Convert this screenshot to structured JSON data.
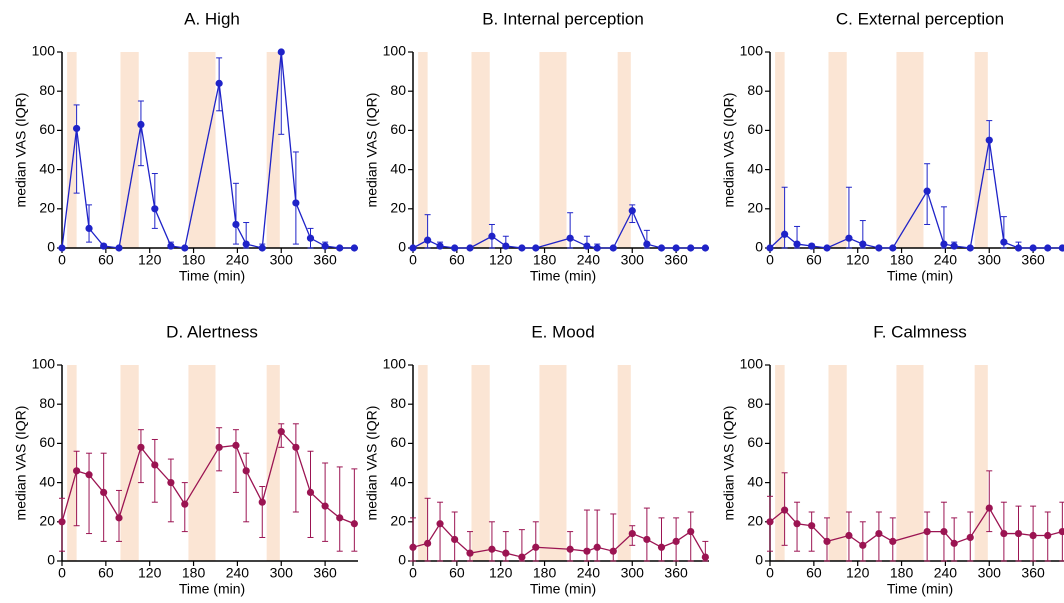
{
  "chart_data": [
    {
      "type": "line",
      "title": "A.  High",
      "xlabel": "Time (min)",
      "ylabel": "median VAS (IQR)",
      "color": "#1f23c8",
      "x": [
        0,
        20,
        37,
        57,
        78,
        108,
        127,
        149,
        168,
        215,
        238,
        252,
        274,
        300,
        320,
        340,
        360,
        380,
        400
      ],
      "values": [
        0,
        61,
        10,
        1,
        0,
        63,
        20,
        1,
        0,
        84,
        12,
        2,
        0,
        100,
        23,
        5,
        1,
        0,
        0
      ],
      "iqr_low": [
        0,
        28,
        3,
        0,
        0,
        42,
        10,
        0,
        0,
        70,
        2,
        0,
        0,
        58,
        2,
        0,
        0,
        0,
        0
      ],
      "iqr_high": [
        0,
        73,
        22,
        2,
        0,
        75,
        38,
        3,
        0,
        97,
        33,
        13,
        2,
        100,
        49,
        10,
        3,
        0,
        0
      ],
      "shaded": [
        [
          7,
          20
        ],
        [
          80,
          105
        ],
        [
          173,
          210
        ],
        [
          280,
          298
        ]
      ],
      "xlim": [
        0,
        405
      ],
      "ylim": [
        0,
        100
      ],
      "xticks": [
        0,
        60,
        120,
        180,
        240,
        300,
        360
      ],
      "yticks": [
        0,
        20,
        40,
        60,
        80,
        100
      ]
    },
    {
      "type": "line",
      "title": "B. Internal perception",
      "xlabel": "Time (min)",
      "ylabel": "median VAS (IQR)",
      "color": "#1f23c8",
      "x": [
        0,
        20,
        37,
        57,
        78,
        108,
        127,
        149,
        168,
        215,
        238,
        252,
        274,
        300,
        320,
        340,
        360,
        380,
        400
      ],
      "values": [
        0,
        4,
        1,
        0,
        0,
        6,
        1,
        0,
        0,
        5,
        1,
        0,
        0,
        19,
        2,
        0,
        0,
        0,
        0
      ],
      "iqr_low": [
        0,
        0,
        0,
        0,
        0,
        0,
        0,
        0,
        0,
        0,
        0,
        0,
        0,
        13,
        0,
        0,
        0,
        0,
        0
      ],
      "iqr_high": [
        0,
        17,
        3,
        0,
        0,
        12,
        6,
        0,
        0,
        18,
        6,
        2,
        0,
        22,
        9,
        0,
        0,
        0,
        0
      ],
      "shaded": [
        [
          7,
          20
        ],
        [
          80,
          105
        ],
        [
          173,
          210
        ],
        [
          280,
          298
        ]
      ],
      "xlim": [
        0,
        405
      ],
      "ylim": [
        0,
        100
      ],
      "xticks": [
        0,
        60,
        120,
        180,
        240,
        300,
        360
      ],
      "yticks": [
        0,
        20,
        40,
        60,
        80,
        100
      ]
    },
    {
      "type": "line",
      "title": "C. External perception",
      "xlabel": "Time (min)",
      "ylabel": "median VAS (IQR)",
      "color": "#1f23c8",
      "x": [
        0,
        20,
        37,
        57,
        78,
        108,
        127,
        149,
        168,
        215,
        238,
        252,
        274,
        300,
        320,
        340,
        360,
        380,
        400
      ],
      "values": [
        0,
        7,
        2,
        1,
        0,
        5,
        2,
        0,
        0,
        29,
        2,
        1,
        0,
        55,
        3,
        0,
        0,
        0,
        0
      ],
      "iqr_low": [
        0,
        0,
        0,
        0,
        0,
        0,
        0,
        0,
        0,
        12,
        0,
        0,
        0,
        40,
        0,
        0,
        0,
        0,
        0
      ],
      "iqr_high": [
        0,
        31,
        11,
        2,
        0,
        31,
        14,
        1,
        0,
        43,
        21,
        3,
        0,
        65,
        16,
        3,
        0,
        0,
        0
      ],
      "shaded": [
        [
          7,
          20
        ],
        [
          80,
          105
        ],
        [
          173,
          210
        ],
        [
          280,
          298
        ]
      ],
      "xlim": [
        0,
        405
      ],
      "ylim": [
        0,
        100
      ],
      "xticks": [
        0,
        60,
        120,
        180,
        240,
        300,
        360
      ],
      "yticks": [
        0,
        20,
        40,
        60,
        80,
        100
      ]
    },
    {
      "type": "line",
      "title": "D. Alertness",
      "xlabel": "Time (min)",
      "ylabel": "median VAS (IQR)",
      "color": "#9b1452",
      "x": [
        0,
        20,
        37,
        57,
        78,
        108,
        127,
        149,
        168,
        215,
        238,
        252,
        274,
        300,
        320,
        340,
        360,
        380,
        400
      ],
      "values": [
        20,
        46,
        44,
        35,
        22,
        58,
        49,
        40,
        29,
        58,
        59,
        46,
        30,
        66,
        58,
        35,
        28,
        22,
        19
      ],
      "iqr_low": [
        5,
        18,
        14,
        10,
        10,
        40,
        30,
        20,
        15,
        46,
        35,
        20,
        12,
        58,
        25,
        12,
        10,
        5,
        5
      ],
      "iqr_high": [
        32,
        56,
        55,
        55,
        36,
        67,
        62,
        52,
        40,
        68,
        67,
        55,
        38,
        70,
        70,
        56,
        50,
        48,
        47
      ],
      "shaded": [
        [
          7,
          20
        ],
        [
          80,
          105
        ],
        [
          173,
          210
        ],
        [
          280,
          298
        ]
      ],
      "xlim": [
        0,
        405
      ],
      "ylim": [
        0,
        100
      ],
      "xticks": [
        0,
        60,
        120,
        180,
        240,
        300,
        360
      ],
      "yticks": [
        0,
        20,
        40,
        60,
        80,
        100
      ]
    },
    {
      "type": "line",
      "title": "E. Mood",
      "xlabel": "Time (min)",
      "ylabel": "median VAS (IQR)",
      "color": "#9b1452",
      "x": [
        0,
        20,
        37,
        57,
        78,
        108,
        127,
        149,
        168,
        215,
        238,
        252,
        274,
        300,
        320,
        340,
        360,
        380,
        400
      ],
      "values": [
        7,
        9,
        19,
        11,
        4,
        6,
        4,
        2,
        7,
        6,
        5,
        7,
        5,
        14,
        11,
        7,
        10,
        15,
        2
      ],
      "iqr_low": [
        0,
        0,
        0,
        0,
        0,
        0,
        0,
        0,
        0,
        0,
        0,
        0,
        0,
        8,
        0,
        0,
        0,
        0,
        0
      ],
      "iqr_high": [
        22,
        32,
        30,
        25,
        15,
        20,
        15,
        16,
        20,
        15,
        26,
        26,
        24,
        18,
        27,
        22,
        22,
        25,
        10
      ],
      "shaded": [
        [
          7,
          20
        ],
        [
          80,
          105
        ],
        [
          173,
          210
        ],
        [
          280,
          298
        ]
      ],
      "xlim": [
        0,
        405
      ],
      "ylim": [
        0,
        100
      ],
      "xticks": [
        0,
        60,
        120,
        180,
        240,
        300,
        360
      ],
      "yticks": [
        0,
        20,
        40,
        60,
        80,
        100
      ]
    },
    {
      "type": "line",
      "title": "F. Calmness",
      "xlabel": "Time (min)",
      "ylabel": "median VAS (IQR)",
      "color": "#9b1452",
      "x": [
        0,
        20,
        37,
        57,
        78,
        108,
        127,
        149,
        168,
        215,
        238,
        252,
        274,
        300,
        320,
        340,
        360,
        380,
        400
      ],
      "values": [
        20,
        26,
        19,
        18,
        10,
        13,
        8,
        14,
        10,
        15,
        15,
        9,
        12,
        27,
        14,
        14,
        13,
        13,
        15
      ],
      "iqr_low": [
        5,
        8,
        5,
        5,
        0,
        0,
        0,
        0,
        0,
        0,
        0,
        0,
        0,
        15,
        0,
        0,
        0,
        0,
        0
      ],
      "iqr_high": [
        33,
        45,
        30,
        25,
        22,
        25,
        20,
        25,
        22,
        25,
        30,
        22,
        25,
        46,
        30,
        28,
        28,
        25,
        30
      ],
      "shaded": [
        [
          7,
          20
        ],
        [
          80,
          105
        ],
        [
          173,
          210
        ],
        [
          280,
          298
        ]
      ],
      "xlim": [
        0,
        405
      ],
      "ylim": [
        0,
        100
      ],
      "xticks": [
        0,
        60,
        120,
        180,
        240,
        300,
        360
      ],
      "yticks": [
        0,
        20,
        40,
        60,
        80,
        100
      ]
    }
  ]
}
